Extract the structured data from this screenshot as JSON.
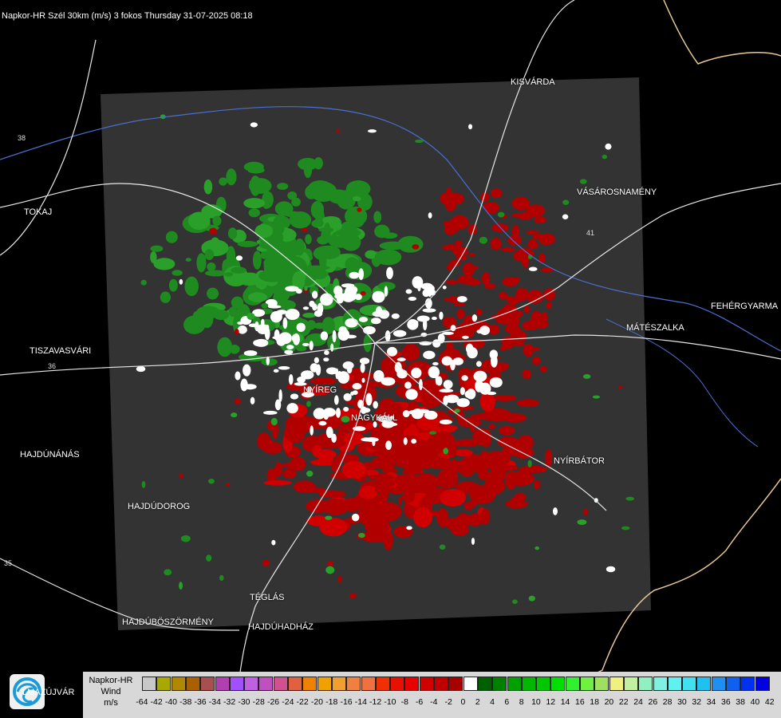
{
  "header": {
    "title": "Napkor-HR Szél 30km (m/s) 3 fokos Thursday 31-07-2025 08:18"
  },
  "cities": [
    {
      "id": "kisvarda",
      "name": "KISVÁRDA"
    },
    {
      "id": "vasarosnameny",
      "name": "VÁSÁROSNAMÉNY"
    },
    {
      "id": "tokaj",
      "name": "TOKAJ"
    },
    {
      "id": "fehergyarmat",
      "name": "FEHÉRGYARMA"
    },
    {
      "id": "mateszalka",
      "name": "MÁTÉSZALKA"
    },
    {
      "id": "tiszavasvari",
      "name": "TISZAVASVÁRI"
    },
    {
      "id": "nyireg",
      "name": "NYÍREG"
    },
    {
      "id": "nagykall",
      "name": "NAGYKÁLL"
    },
    {
      "id": "hajdunanas",
      "name": "HAJDÚNÁNÁS"
    },
    {
      "id": "nyirbator",
      "name": "NYÍRBÁTOR"
    },
    {
      "id": "hajdudorog",
      "name": "HAJDÚDOROG"
    },
    {
      "id": "teglas",
      "name": "TÉGLÁS"
    },
    {
      "id": "hajduboszormeny",
      "name": "HAJDÚBÖSZÖRMÉNY"
    },
    {
      "id": "hajduhadhaz",
      "name": "HAJDÚHADHÁZ"
    }
  ],
  "roads": [
    {
      "id": "r38",
      "label": "38"
    },
    {
      "id": "r41",
      "label": "41"
    },
    {
      "id": "r36",
      "label": "36"
    },
    {
      "id": "r35",
      "label": "35"
    }
  ],
  "logo": {
    "text": "LMAZÚJVÁR",
    "icon": "weather-logo-icon"
  },
  "legend": {
    "label_line1": "Napkor-HR",
    "label_line2": "Wind",
    "label_line3": "m/s",
    "swatches": [
      "#c8c8c8",
      "#a8a800",
      "#b08800",
      "#a86000",
      "#a85050",
      "#b040b0",
      "#a050ff",
      "#c060e0",
      "#c050c0",
      "#d05090",
      "#e06040",
      "#f08000",
      "#f0a000",
      "#f0a030",
      "#f08040",
      "#f07040",
      "#f03000",
      "#e81000",
      "#e80000",
      "#d00000",
      "#c00000",
      "#a80000",
      "#ffffff",
      "#006000",
      "#008000",
      "#00a000",
      "#00b800",
      "#00c800",
      "#00e000",
      "#30f030",
      "#70f040",
      "#a0e060",
      "#f0f080",
      "#c0f0a0",
      "#90f0c0",
      "#80f0e0",
      "#60f0f0",
      "#40e0f0",
      "#20c0f0",
      "#2090f0",
      "#1060f0",
      "#0030f0",
      "#0000e0"
    ],
    "ticks": [
      "-64",
      "-42",
      "-40",
      "-38",
      "-36",
      "-34",
      "-32",
      "-30",
      "-28",
      "-26",
      "-24",
      "-22",
      "-20",
      "-18",
      "-16",
      "-14",
      "-12",
      "-10",
      "-8",
      "-6",
      "-4",
      "-2",
      "0",
      "2",
      "4",
      "6",
      "8",
      "10",
      "12",
      "14",
      "16",
      "18",
      "20",
      "22",
      "24",
      "26",
      "28",
      "30",
      "32",
      "34",
      "36",
      "38",
      "40",
      "42"
    ]
  }
}
